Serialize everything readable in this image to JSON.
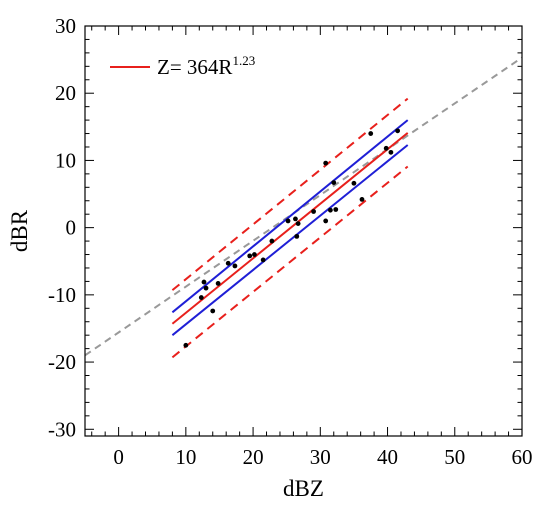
{
  "chart_data": {
    "type": "scatter",
    "xlabel": "dBZ",
    "ylabel": "dBR",
    "xlim": [
      -5,
      60
    ],
    "ylim": [
      -31,
      30
    ],
    "xticks": [
      0,
      10,
      20,
      30,
      40,
      50,
      60
    ],
    "yticks": [
      -30,
      -20,
      -10,
      0,
      10,
      20,
      30
    ],
    "xtick_labels": [
      "0",
      "10",
      "20",
      "30",
      "40",
      "50",
      "60"
    ],
    "ytick_labels": [
      "-30",
      "-20",
      "-10",
      "0",
      "10",
      "20",
      "30"
    ],
    "legend": {
      "position": "top-left",
      "text": "Z= 364R",
      "superscript": "1.23",
      "color": "#e8201c"
    },
    "points": [
      {
        "x": 10.0,
        "y": -17.5
      },
      {
        "x": 12.3,
        "y": -10.4
      },
      {
        "x": 12.7,
        "y": -8.1
      },
      {
        "x": 13.0,
        "y": -9.0
      },
      {
        "x": 14.0,
        "y": -12.4
      },
      {
        "x": 14.8,
        "y": -8.3
      },
      {
        "x": 16.3,
        "y": -5.3
      },
      {
        "x": 17.3,
        "y": -5.7
      },
      {
        "x": 19.5,
        "y": -4.2
      },
      {
        "x": 20.2,
        "y": -4.0
      },
      {
        "x": 21.5,
        "y": -4.8
      },
      {
        "x": 22.8,
        "y": -2.0
      },
      {
        "x": 25.2,
        "y": 1.0
      },
      {
        "x": 26.3,
        "y": 1.3
      },
      {
        "x": 26.7,
        "y": 0.6
      },
      {
        "x": 26.5,
        "y": -1.3
      },
      {
        "x": 29.0,
        "y": 2.4
      },
      {
        "x": 30.8,
        "y": 9.6
      },
      {
        "x": 30.8,
        "y": 1.0
      },
      {
        "x": 31.5,
        "y": 2.6
      },
      {
        "x": 32.0,
        "y": 6.7
      },
      {
        "x": 32.3,
        "y": 2.7
      },
      {
        "x": 35.0,
        "y": 6.6
      },
      {
        "x": 36.2,
        "y": 4.2
      },
      {
        "x": 37.5,
        "y": 14.0
      },
      {
        "x": 39.8,
        "y": 11.8
      },
      {
        "x": 40.5,
        "y": 11.2
      },
      {
        "x": 41.5,
        "y": 14.4
      }
    ],
    "lines": [
      {
        "role": "one-to-one",
        "color": "#999999",
        "dash": true,
        "x": [
          -5,
          60
        ],
        "y": [
          -19.0,
          25.3
        ]
      },
      {
        "role": "fit",
        "color": "#e8201c",
        "dash": false,
        "x": [
          8,
          43
        ],
        "y": [
          -14.3,
          14.1
        ]
      },
      {
        "role": "confidence-upper",
        "color": "#1f1fd6",
        "dash": false,
        "x": [
          8,
          43
        ],
        "y": [
          -12.6,
          16.0
        ]
      },
      {
        "role": "confidence-lower",
        "color": "#1f1fd6",
        "dash": false,
        "x": [
          8,
          43
        ],
        "y": [
          -16.0,
          12.3
        ]
      },
      {
        "role": "prediction-upper",
        "color": "#e8201c",
        "dash": true,
        "x": [
          8,
          43
        ],
        "y": [
          -9.3,
          19.2
        ]
      },
      {
        "role": "prediction-lower",
        "color": "#e8201c",
        "dash": true,
        "x": [
          8,
          43
        ],
        "y": [
          -19.3,
          9.1
        ]
      }
    ]
  }
}
